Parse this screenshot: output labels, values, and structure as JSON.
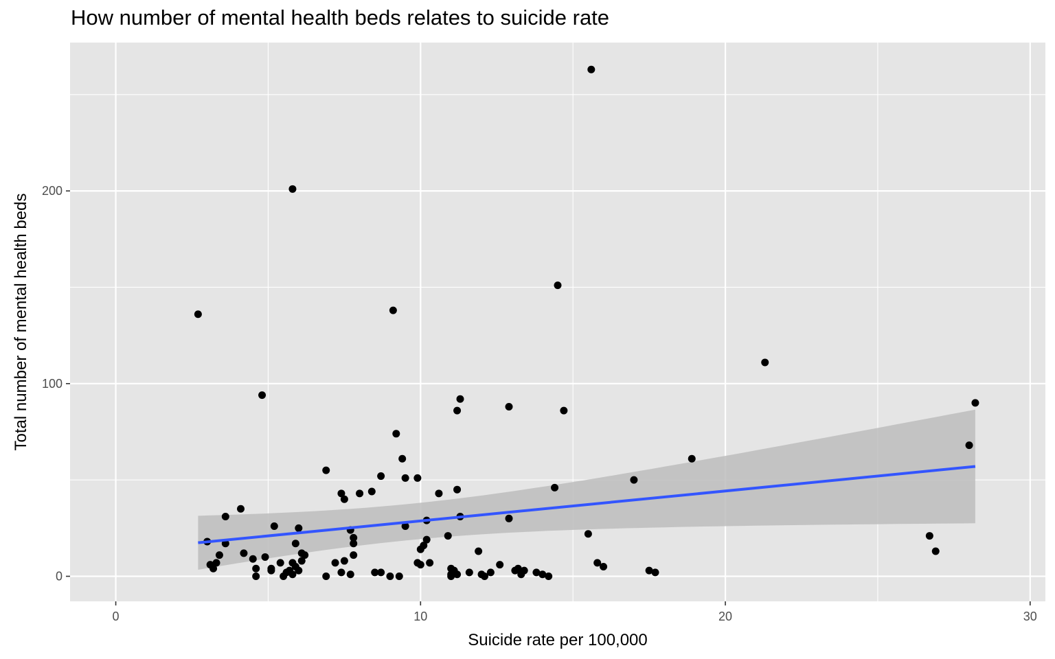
{
  "chart_data": {
    "type": "scatter",
    "title": "How number of mental health beds relates to suicide rate",
    "xlabel": "Suicide rate per 100,000",
    "ylabel": "Total number of mental health beds",
    "xlim": [
      -1.5,
      30.5
    ],
    "ylim": [
      -13,
      277
    ],
    "x_ticks": [
      0,
      10,
      20,
      30
    ],
    "x_tick_labels": [
      "0",
      "10",
      "20",
      "30"
    ],
    "y_ticks": [
      0,
      100,
      200
    ],
    "y_tick_labels": [
      "0",
      "100",
      "200"
    ],
    "grid": true,
    "legend": "none",
    "colors": {
      "panel_background": "#e5e5e5",
      "grid_line": "#ffffff",
      "point": "#000000",
      "fit_line": "#3355ff",
      "confidence_band": "#bdbdbd"
    },
    "series": [
      {
        "points": [
          [
            2.7,
            136
          ],
          [
            3.0,
            18
          ],
          [
            3.1,
            6
          ],
          [
            3.2,
            4
          ],
          [
            3.3,
            7
          ],
          [
            3.4,
            11
          ],
          [
            3.6,
            31
          ],
          [
            3.6,
            17
          ],
          [
            4.1,
            35
          ],
          [
            4.2,
            12
          ],
          [
            4.5,
            9
          ],
          [
            4.6,
            0
          ],
          [
            4.6,
            4
          ],
          [
            4.8,
            94
          ],
          [
            4.9,
            10
          ],
          [
            5.1,
            4
          ],
          [
            5.1,
            3
          ],
          [
            5.2,
            26
          ],
          [
            5.4,
            7
          ],
          [
            5.5,
            0
          ],
          [
            5.6,
            2
          ],
          [
            5.7,
            3
          ],
          [
            5.8,
            201
          ],
          [
            5.8,
            7
          ],
          [
            5.8,
            1
          ],
          [
            5.9,
            17
          ],
          [
            5.9,
            5
          ],
          [
            6.0,
            3
          ],
          [
            6.0,
            25
          ],
          [
            6.1,
            8
          ],
          [
            6.1,
            12
          ],
          [
            6.2,
            11
          ],
          [
            6.9,
            55
          ],
          [
            6.9,
            0
          ],
          [
            7.2,
            7
          ],
          [
            7.4,
            2
          ],
          [
            7.4,
            43
          ],
          [
            7.5,
            40
          ],
          [
            7.5,
            8
          ],
          [
            7.7,
            24
          ],
          [
            7.7,
            1
          ],
          [
            7.8,
            11
          ],
          [
            7.8,
            17
          ],
          [
            7.8,
            20
          ],
          [
            8.0,
            43
          ],
          [
            8.4,
            44
          ],
          [
            8.5,
            2
          ],
          [
            8.7,
            52
          ],
          [
            8.7,
            2
          ],
          [
            9.0,
            0
          ],
          [
            9.1,
            138
          ],
          [
            9.2,
            74
          ],
          [
            9.3,
            0
          ],
          [
            9.4,
            61
          ],
          [
            9.5,
            26
          ],
          [
            9.5,
            51
          ],
          [
            9.9,
            51
          ],
          [
            9.9,
            7
          ],
          [
            10.0,
            14
          ],
          [
            10.0,
            6
          ],
          [
            10.1,
            16
          ],
          [
            10.2,
            19
          ],
          [
            10.2,
            29
          ],
          [
            10.3,
            7
          ],
          [
            10.6,
            43
          ],
          [
            10.9,
            21
          ],
          [
            11.0,
            0
          ],
          [
            11.0,
            1
          ],
          [
            11.0,
            4
          ],
          [
            11.1,
            3
          ],
          [
            11.2,
            1
          ],
          [
            11.2,
            45
          ],
          [
            11.2,
            86
          ],
          [
            11.3,
            92
          ],
          [
            11.3,
            31
          ],
          [
            11.6,
            2
          ],
          [
            11.9,
            13
          ],
          [
            12.0,
            1
          ],
          [
            12.1,
            0
          ],
          [
            12.3,
            2
          ],
          [
            12.6,
            6
          ],
          [
            12.9,
            30
          ],
          [
            12.9,
            88
          ],
          [
            13.1,
            3
          ],
          [
            13.2,
            4
          ],
          [
            13.3,
            1
          ],
          [
            13.4,
            3
          ],
          [
            13.8,
            2
          ],
          [
            14.0,
            1
          ],
          [
            14.2,
            0
          ],
          [
            14.4,
            46
          ],
          [
            14.5,
            151
          ],
          [
            14.7,
            86
          ],
          [
            15.5,
            22
          ],
          [
            15.6,
            263
          ],
          [
            15.8,
            7
          ],
          [
            16.0,
            5
          ],
          [
            17.0,
            50
          ],
          [
            17.5,
            3
          ],
          [
            17.7,
            2
          ],
          [
            18.9,
            61
          ],
          [
            21.3,
            111
          ],
          [
            26.7,
            21
          ],
          [
            26.9,
            13
          ],
          [
            28.0,
            68
          ],
          [
            28.2,
            90
          ]
        ]
      }
    ],
    "fit": {
      "method": "lm",
      "x_range": [
        2.7,
        28.2
      ],
      "y_at_start": 17.4,
      "y_at_end": 57.0,
      "ci_at_start": [
        3.5,
        31.5
      ],
      "ci_at_end": [
        27.5,
        86.5
      ]
    }
  }
}
